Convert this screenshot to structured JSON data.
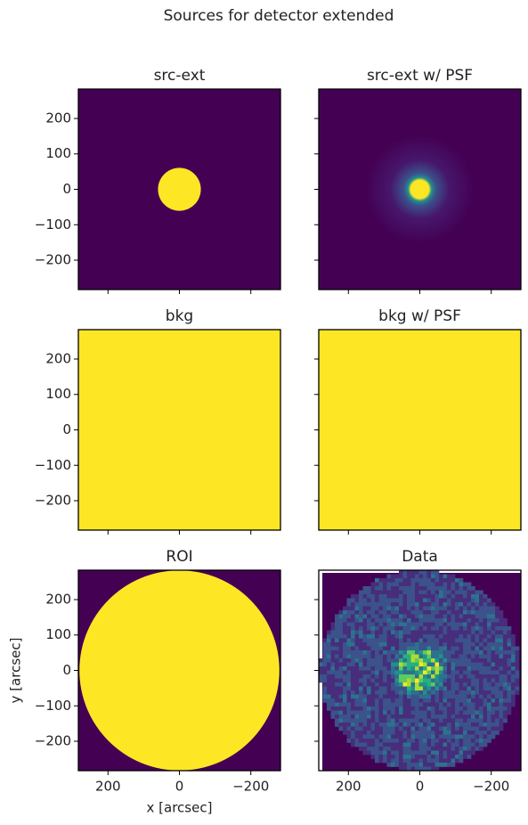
{
  "title": "Sources for detector extended",
  "chart_data": [
    {
      "type": "image",
      "title": "src-ext",
      "xlim": [
        283,
        -283
      ],
      "ylim": [
        -283,
        283
      ],
      "xticks": [
        200,
        0,
        {
          "value": -200,
          "label": "−200"
        }
      ],
      "yticks": [
        {
          "value": -200,
          "label": "−200"
        },
        {
          "value": -100,
          "label": "−100"
        },
        0,
        100,
        200
      ]
    },
    {
      "type": "image",
      "title": "src-ext w/ PSF",
      "xlim": [
        283,
        -283
      ],
      "ylim": [
        -283,
        283
      ],
      "xticks": [
        200,
        0,
        {
          "value": -200,
          "label": "−200"
        }
      ],
      "yticks": [
        {
          "value": -200,
          "label": "−200"
        },
        {
          "value": -100,
          "label": "−100"
        },
        0,
        100,
        200
      ]
    },
    {
      "type": "image",
      "title": "bkg",
      "xlim": [
        283,
        -283
      ],
      "ylim": [
        -283,
        283
      ],
      "xticks": [
        200,
        0,
        {
          "value": -200,
          "label": "−200"
        }
      ],
      "yticks": [
        {
          "value": -200,
          "label": "−200"
        },
        {
          "value": -100,
          "label": "−100"
        },
        0,
        100,
        200
      ]
    },
    {
      "type": "image",
      "title": "bkg w/ PSF",
      "xlim": [
        283,
        -283
      ],
      "ylim": [
        -283,
        283
      ],
      "xticks": [
        200,
        0,
        {
          "value": -200,
          "label": "−200"
        }
      ],
      "yticks": [
        {
          "value": -200,
          "label": "−200"
        },
        {
          "value": -100,
          "label": "−100"
        },
        0,
        100,
        200
      ]
    },
    {
      "type": "image",
      "title": "ROI",
      "xlim": [
        283,
        -283
      ],
      "ylim": [
        -283,
        283
      ],
      "xticks": [
        200,
        0,
        {
          "value": -200,
          "label": "−200"
        }
      ],
      "yticks": [
        {
          "value": -200,
          "label": "−200"
        },
        {
          "value": -100,
          "label": "−100"
        },
        0,
        100,
        200
      ],
      "xlabel": "x [arcsec]",
      "ylabel": "y [arcsec]"
    },
    {
      "type": "image",
      "title": "Data",
      "xlim": [
        283,
        -283
      ],
      "ylim": [
        -283,
        283
      ],
      "xticks": [
        200,
        0,
        {
          "value": -200,
          "label": "−200"
        }
      ],
      "yticks": [
        {
          "value": -200,
          "label": "−200"
        },
        {
          "value": -100,
          "label": "−100"
        },
        0,
        100,
        200
      ]
    }
  ]
}
